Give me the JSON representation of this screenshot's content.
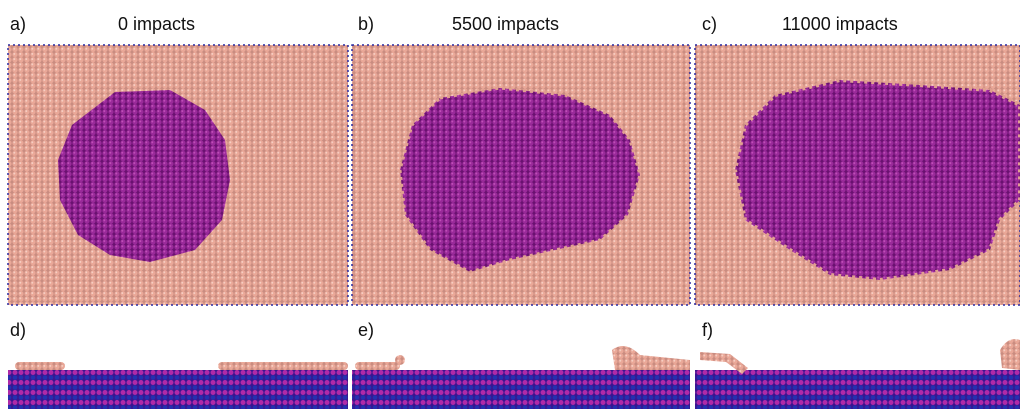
{
  "panels": [
    {
      "label": "a)",
      "title": "0 impacts"
    },
    {
      "label": "b)",
      "title": "5500 impacts"
    },
    {
      "label": "c)",
      "title": "11000 impacts"
    },
    {
      "label": "d)"
    },
    {
      "label": "e)"
    },
    {
      "label": "f)"
    }
  ]
}
